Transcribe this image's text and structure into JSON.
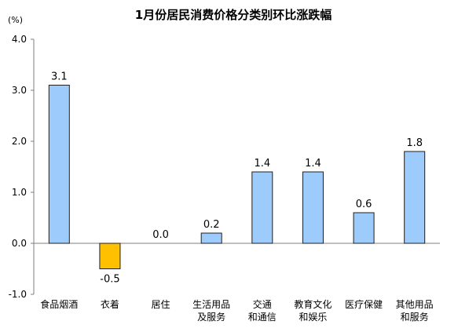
{
  "chart_data": {
    "type": "bar",
    "title": "1月份居民消费价格分类别环比涨跌幅",
    "unit_label": "(%)",
    "categories": [
      [
        "食品烟酒"
      ],
      [
        "衣着"
      ],
      [
        "居住"
      ],
      [
        "生活用品",
        "及服务"
      ],
      [
        "交通",
        "和通信"
      ],
      [
        "教育文化",
        "和娱乐"
      ],
      [
        "医疗保健"
      ],
      [
        "其他用品",
        "和服务"
      ]
    ],
    "values": [
      3.1,
      -0.5,
      0.0,
      0.2,
      1.4,
      1.4,
      0.6,
      1.8
    ],
    "value_labels": [
      "3.1",
      "-0.5",
      "0.0",
      "0.2",
      "1.4",
      "1.4",
      "0.6",
      "1.8"
    ],
    "ylim": [
      -1.0,
      4.0
    ],
    "yticks": [
      4.0,
      3.0,
      2.0,
      1.0,
      0.0,
      -1.0
    ],
    "ytick_labels": [
      "4.0",
      "3.0",
      "2.0",
      "1.0",
      "0.0",
      "-1.0"
    ],
    "grid": false,
    "colors": {
      "positive_fill": "#9dcbfb",
      "negative_fill": "#ffc000",
      "bar_stroke": "#1f1f1f",
      "axis": "#7f7f7f",
      "text": "#000000"
    }
  }
}
